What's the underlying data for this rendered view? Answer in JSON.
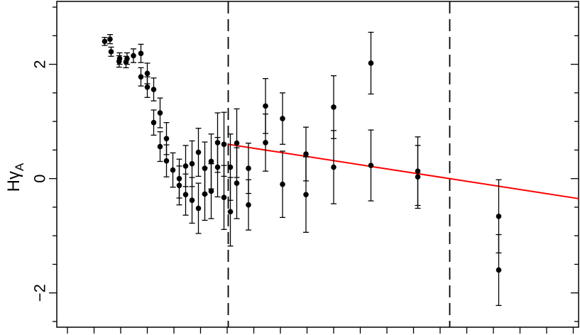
{
  "chart_data": {
    "type": "scatter",
    "ylabel": {
      "main": "H",
      "greek": "γ",
      "sub": "A"
    },
    "xlim": [
      -0.2,
      9.6
    ],
    "ylim": [
      -2.6,
      3.1
    ],
    "y_tick_values": [
      -2,
      0,
      2
    ],
    "y_tick_labels": [
      "−2",
      "0",
      "2"
    ],
    "x_minor_ticks": [
      0,
      0.5,
      1,
      1.5,
      2,
      2.5,
      3,
      3.5,
      4,
      4.5,
      5,
      5.5,
      6,
      6.5,
      7,
      7.5,
      8,
      8.5,
      9,
      9.5
    ],
    "y_minor_ticks": [
      -2.5,
      -2,
      -1.5,
      -1,
      -0.5,
      0,
      0.5,
      1,
      1.5,
      2,
      2.5,
      3
    ],
    "vertical_lines": [
      {
        "x": 3.02,
        "style": "dashed"
      },
      {
        "x": 7.18,
        "style": "dashed"
      }
    ],
    "fit_line": {
      "x": [
        3.02,
        9.6
      ],
      "y": [
        0.6,
        -0.35
      ],
      "color": "#ff0000"
    },
    "points": [
      {
        "x": 0.7,
        "y": 2.4,
        "err": 0.07
      },
      {
        "x": 0.8,
        "y": 2.44,
        "err": 0.08
      },
      {
        "x": 0.82,
        "y": 2.22,
        "err": 0.08
      },
      {
        "x": 0.97,
        "y": 2.05,
        "err": 0.1
      },
      {
        "x": 0.98,
        "y": 2.1,
        "err": 0.1
      },
      {
        "x": 1.1,
        "y": 2.04,
        "err": 0.1
      },
      {
        "x": 1.12,
        "y": 2.1,
        "err": 0.1
      },
      {
        "x": 1.24,
        "y": 2.15,
        "err": 0.12
      },
      {
        "x": 1.38,
        "y": 2.19,
        "err": 0.16
      },
      {
        "x": 1.38,
        "y": 1.78,
        "err": 0.16
      },
      {
        "x": 1.5,
        "y": 1.84,
        "err": 0.18
      },
      {
        "x": 1.5,
        "y": 1.6,
        "err": 0.18
      },
      {
        "x": 1.62,
        "y": 1.56,
        "err": 0.2
      },
      {
        "x": 1.62,
        "y": 0.98,
        "err": 0.22
      },
      {
        "x": 1.74,
        "y": 1.15,
        "err": 0.26
      },
      {
        "x": 1.74,
        "y": 0.56,
        "err": 0.26
      },
      {
        "x": 1.86,
        "y": 0.7,
        "err": 0.28
      },
      {
        "x": 1.86,
        "y": 0.31,
        "err": 0.28
      },
      {
        "x": 1.98,
        "y": 0.15,
        "err": 0.3
      },
      {
        "x": 2.1,
        "y": 0.0,
        "err": 0.34
      },
      {
        "x": 2.1,
        "y": -0.12,
        "err": 0.34
      },
      {
        "x": 2.22,
        "y": 0.22,
        "err": 0.36
      },
      {
        "x": 2.22,
        "y": -0.28,
        "err": 0.36
      },
      {
        "x": 2.34,
        "y": 0.26,
        "err": 0.4
      },
      {
        "x": 2.34,
        "y": -0.38,
        "err": 0.4
      },
      {
        "x": 2.46,
        "y": 0.46,
        "err": 0.42
      },
      {
        "x": 2.46,
        "y": -0.52,
        "err": 0.44
      },
      {
        "x": 2.58,
        "y": 0.18,
        "err": 0.46
      },
      {
        "x": 2.58,
        "y": -0.27,
        "err": 0.46
      },
      {
        "x": 2.7,
        "y": 0.3,
        "err": 0.48
      },
      {
        "x": 2.7,
        "y": -0.22,
        "err": 0.48
      },
      {
        "x": 2.82,
        "y": 0.63,
        "err": 0.52
      },
      {
        "x": 2.82,
        "y": 0.2,
        "err": 0.52
      },
      {
        "x": 2.94,
        "y": 0.6,
        "err": 0.56
      },
      {
        "x": 2.94,
        "y": -0.33,
        "err": 0.56
      },
      {
        "x": 3.06,
        "y": 0.2,
        "err": 0.58
      },
      {
        "x": 3.06,
        "y": -0.58,
        "err": 0.6
      },
      {
        "x": 3.18,
        "y": 0.62,
        "err": 0.6
      },
      {
        "x": 3.18,
        "y": -0.08,
        "err": 0.62
      },
      {
        "x": 3.4,
        "y": 0.18,
        "err": 0.44
      },
      {
        "x": 3.4,
        "y": -0.46,
        "err": 0.44
      },
      {
        "x": 3.72,
        "y": 1.27,
        "err": 0.48
      },
      {
        "x": 3.72,
        "y": 0.63,
        "err": 0.5
      },
      {
        "x": 4.04,
        "y": 1.05,
        "err": 0.45
      },
      {
        "x": 4.04,
        "y": -0.1,
        "err": 0.58
      },
      {
        "x": 4.48,
        "y": 0.43,
        "err": 0.47
      },
      {
        "x": 4.48,
        "y": -0.28,
        "err": 0.66
      },
      {
        "x": 5.0,
        "y": 1.25,
        "err": 0.55
      },
      {
        "x": 5.0,
        "y": 0.2,
        "err": 0.64
      },
      {
        "x": 5.7,
        "y": 2.02,
        "err": 0.54
      },
      {
        "x": 5.7,
        "y": 0.23,
        "err": 0.62
      },
      {
        "x": 6.58,
        "y": 0.13,
        "err": 0.6
      },
      {
        "x": 6.58,
        "y": 0.03,
        "err": 0.55
      },
      {
        "x": 8.1,
        "y": -0.66,
        "err": 0.64
      },
      {
        "x": 8.1,
        "y": -1.6,
        "err": 0.62
      }
    ]
  }
}
